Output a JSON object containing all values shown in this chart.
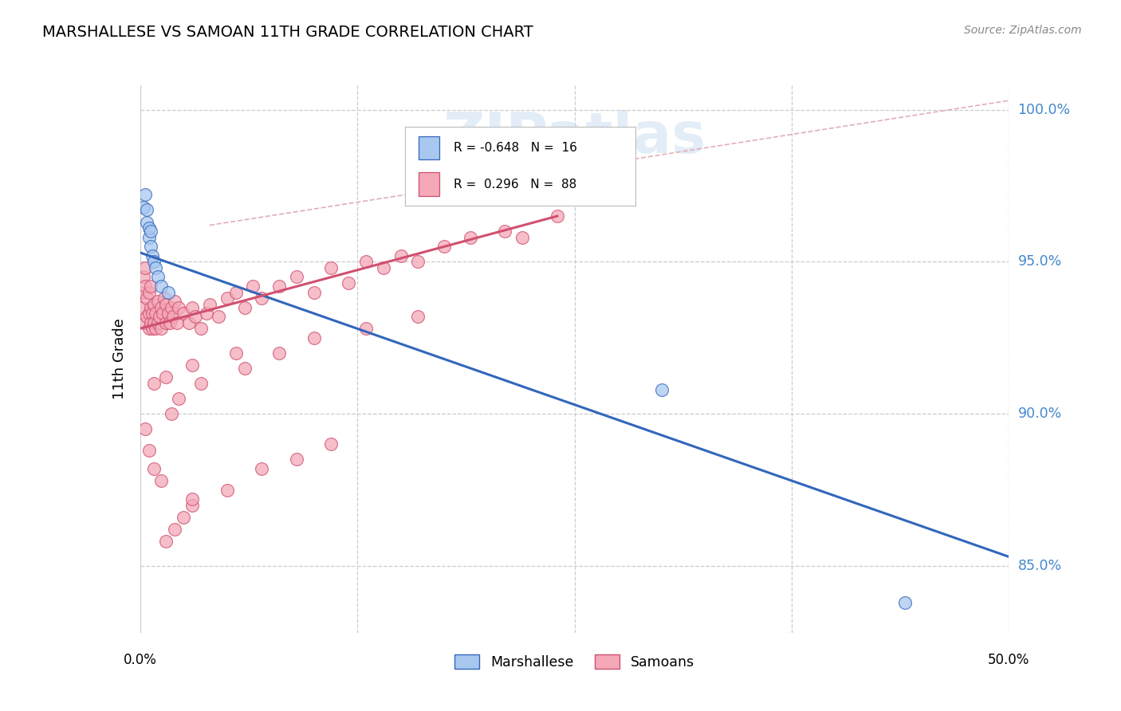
{
  "title": "MARSHALLESE VS SAMOAN 11TH GRADE CORRELATION CHART",
  "source": "Source: ZipAtlas.com",
  "ylabel": "11th Grade",
  "xmin": 0.0,
  "xmax": 0.5,
  "ymin": 0.828,
  "ymax": 1.008,
  "yticks": [
    0.85,
    0.9,
    0.95,
    1.0
  ],
  "ytick_labels": [
    "85.0%",
    "90.0%",
    "95.0%",
    "100.0%"
  ],
  "blue_color": "#A8C8F0",
  "pink_color": "#F4A8B8",
  "blue_line_color": "#3366BB",
  "pink_line_color": "#D05070",
  "background_color": "#FFFFFF",
  "watermark_text": "ZIPatlas",
  "watermark_color": "#C8DCF0",
  "blue_line_x": [
    0.0,
    0.5
  ],
  "blue_line_y": [
    0.953,
    0.853
  ],
  "pink_line_x": [
    0.0,
    0.24
  ],
  "pink_line_y": [
    0.928,
    0.965
  ],
  "dash_line_x": [
    0.04,
    0.5
  ],
  "dash_line_y": [
    0.962,
    1.003
  ],
  "marsh_x": [
    0.002,
    0.003,
    0.004,
    0.004,
    0.005,
    0.005,
    0.006,
    0.006,
    0.007,
    0.008,
    0.009,
    0.01,
    0.012,
    0.016,
    0.3,
    0.44
  ],
  "marsh_y": [
    0.968,
    0.972,
    0.963,
    0.967,
    0.958,
    0.961,
    0.955,
    0.96,
    0.952,
    0.95,
    0.948,
    0.945,
    0.942,
    0.94,
    0.908,
    0.838
  ],
  "sam_x": [
    0.001,
    0.002,
    0.002,
    0.003,
    0.003,
    0.003,
    0.004,
    0.004,
    0.005,
    0.005,
    0.005,
    0.006,
    0.006,
    0.006,
    0.007,
    0.007,
    0.008,
    0.008,
    0.009,
    0.009,
    0.01,
    0.01,
    0.011,
    0.012,
    0.012,
    0.013,
    0.014,
    0.015,
    0.015,
    0.016,
    0.017,
    0.018,
    0.019,
    0.02,
    0.021,
    0.022,
    0.025,
    0.028,
    0.03,
    0.032,
    0.035,
    0.038,
    0.04,
    0.045,
    0.05,
    0.055,
    0.06,
    0.065,
    0.07,
    0.08,
    0.09,
    0.1,
    0.11,
    0.12,
    0.13,
    0.14,
    0.15,
    0.16,
    0.175,
    0.19,
    0.21,
    0.22,
    0.24,
    0.03,
    0.05,
    0.07,
    0.09,
    0.11,
    0.015,
    0.02,
    0.025,
    0.03,
    0.012,
    0.008,
    0.005,
    0.003,
    0.018,
    0.022,
    0.035,
    0.06,
    0.08,
    0.1,
    0.13,
    0.16,
    0.008,
    0.015,
    0.03,
    0.055
  ],
  "sam_y": [
    0.935,
    0.94,
    0.945,
    0.93,
    0.942,
    0.948,
    0.932,
    0.938,
    0.928,
    0.933,
    0.94,
    0.93,
    0.935,
    0.942,
    0.928,
    0.933,
    0.93,
    0.936,
    0.928,
    0.933,
    0.93,
    0.937,
    0.932,
    0.928,
    0.935,
    0.933,
    0.938,
    0.93,
    0.936,
    0.933,
    0.93,
    0.935,
    0.932,
    0.937,
    0.93,
    0.935,
    0.933,
    0.93,
    0.935,
    0.932,
    0.928,
    0.933,
    0.936,
    0.932,
    0.938,
    0.94,
    0.935,
    0.942,
    0.938,
    0.942,
    0.945,
    0.94,
    0.948,
    0.943,
    0.95,
    0.948,
    0.952,
    0.95,
    0.955,
    0.958,
    0.96,
    0.958,
    0.965,
    0.87,
    0.875,
    0.882,
    0.885,
    0.89,
    0.858,
    0.862,
    0.866,
    0.872,
    0.878,
    0.882,
    0.888,
    0.895,
    0.9,
    0.905,
    0.91,
    0.915,
    0.92,
    0.925,
    0.928,
    0.932,
    0.91,
    0.912,
    0.916,
    0.92
  ]
}
